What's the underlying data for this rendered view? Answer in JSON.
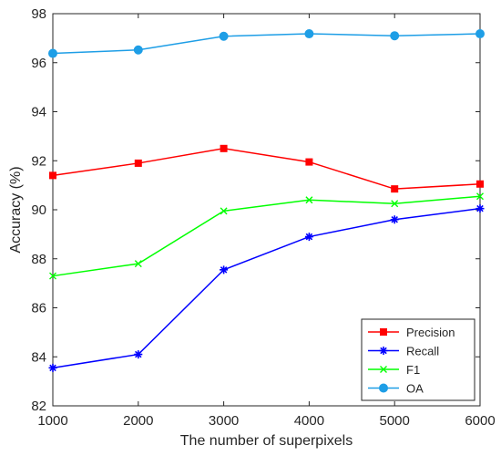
{
  "chart_data": {
    "type": "line",
    "xlabel": "The number of superpixels",
    "ylabel": "Accuracy (%)",
    "x": [
      1000,
      2000,
      3000,
      4000,
      5000,
      6000
    ],
    "xlim": [
      1000,
      6000
    ],
    "ylim": [
      82,
      98
    ],
    "xticks": [
      "1000",
      "2000",
      "3000",
      "4000",
      "5000",
      "6000"
    ],
    "yticks": [
      "82",
      "84",
      "86",
      "88",
      "90",
      "92",
      "94",
      "96",
      "98"
    ],
    "grid": false,
    "legend_position": "bottom-right",
    "series": [
      {
        "name": "Precision",
        "color": "#ff0000",
        "marker": "square",
        "values": [
          91.4,
          91.9,
          92.5,
          91.95,
          90.85,
          91.05
        ]
      },
      {
        "name": "Recall",
        "color": "#0000ff",
        "marker": "asterisk",
        "values": [
          83.55,
          84.1,
          87.55,
          88.9,
          89.6,
          90.05
        ]
      },
      {
        "name": "F1",
        "color": "#00ff00",
        "marker": "x",
        "values": [
          87.3,
          87.8,
          89.95,
          90.4,
          90.25,
          90.55
        ]
      },
      {
        "name": "OA",
        "color": "#1e9ee6",
        "marker": "circle",
        "values": [
          96.38,
          96.52,
          97.08,
          97.18,
          97.1,
          97.18
        ]
      }
    ]
  }
}
